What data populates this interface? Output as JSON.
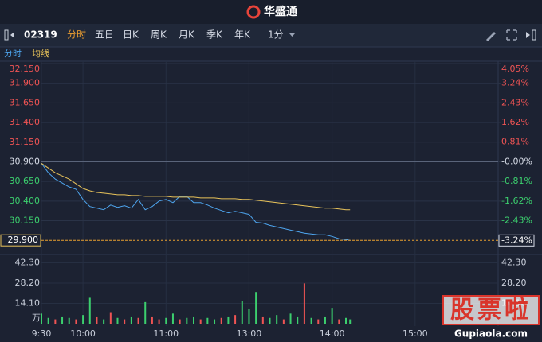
{
  "header": {
    "logo": "华盛通"
  },
  "toolbar": {
    "code": "02319",
    "tabs": [
      "分时",
      "五日",
      "日K",
      "周K",
      "月K",
      "季K",
      "年K"
    ],
    "interval": "1分"
  },
  "watermark": {
    "title": "股票啦",
    "url": "Gupiaola.com"
  },
  "chart_data": [
    {
      "type": "line",
      "x": [
        0,
        5,
        10,
        15,
        20,
        25,
        30,
        35,
        40,
        45,
        50,
        55,
        60,
        65,
        70,
        75,
        80,
        85,
        90,
        95,
        100,
        105,
        110,
        115,
        120,
        125,
        130,
        135,
        140,
        145,
        150,
        155,
        160,
        165,
        170,
        175,
        180,
        185,
        190,
        195,
        200,
        205,
        210,
        215,
        220,
        223
      ],
      "xlim": [
        0,
        330
      ],
      "series": [
        {
          "name": "分时",
          "color": "#4ea5ee",
          "values": [
            30.88,
            30.76,
            30.68,
            30.63,
            30.58,
            30.55,
            30.42,
            30.33,
            30.31,
            30.29,
            30.35,
            30.32,
            30.34,
            30.31,
            30.42,
            30.29,
            30.33,
            30.4,
            30.42,
            30.38,
            30.46,
            30.46,
            30.38,
            30.38,
            30.35,
            30.31,
            30.28,
            30.25,
            30.27,
            30.25,
            30.23,
            30.13,
            30.12,
            30.09,
            30.07,
            30.05,
            30.03,
            30.01,
            29.99,
            29.98,
            29.97,
            29.97,
            29.95,
            29.92,
            29.91,
            29.9
          ]
        },
        {
          "name": "均线",
          "color": "#e8c35a",
          "values": [
            30.88,
            30.82,
            30.76,
            30.72,
            30.68,
            30.62,
            30.56,
            30.53,
            30.51,
            30.5,
            30.49,
            30.48,
            30.48,
            30.47,
            30.47,
            30.46,
            30.46,
            30.46,
            30.46,
            30.45,
            30.45,
            30.45,
            30.45,
            30.44,
            30.44,
            30.44,
            30.43,
            30.43,
            30.43,
            30.42,
            30.42,
            30.41,
            30.4,
            30.39,
            30.38,
            30.37,
            30.36,
            30.35,
            30.34,
            30.33,
            30.32,
            30.31,
            30.31,
            30.3,
            30.29,
            30.29
          ]
        }
      ],
      "ylim": [
        29.74,
        32.15
      ],
      "yticks": [
        {
          "value": 32.15,
          "label": "32.150"
        },
        {
          "value": 31.9,
          "label": "31.900"
        },
        {
          "value": 31.65,
          "label": "31.650"
        },
        {
          "value": 31.4,
          "label": "31.400"
        },
        {
          "value": 31.15,
          "label": "31.150"
        },
        {
          "value": 30.9,
          "label": "30.900"
        },
        {
          "value": 30.65,
          "label": "30.650"
        },
        {
          "value": 30.4,
          "label": "30.400"
        },
        {
          "value": 30.15,
          "label": "30.150"
        }
      ],
      "y2lim": [
        -3.754,
        4.045
      ],
      "y2ticks": [
        {
          "value": 4.05,
          "label": "4.05%"
        },
        {
          "value": 3.24,
          "label": "3.24%"
        },
        {
          "value": 2.43,
          "label": "2.43%"
        },
        {
          "value": 1.62,
          "label": "1.62%"
        },
        {
          "value": 0.81,
          "label": "0.81%"
        },
        {
          "value": 0,
          "label": "-0.00%"
        },
        {
          "value": -0.81,
          "label": "-0.81%"
        },
        {
          "value": -1.62,
          "label": "-1.62%"
        },
        {
          "value": -2.43,
          "label": "-2.43%"
        }
      ],
      "last_price": {
        "value": 29.9,
        "label": "29.900"
      },
      "last_change": {
        "value": -3.24,
        "label": "-3.24%"
      },
      "up_color": "#f05454",
      "down_color": "#3ccf6e",
      "grid": true
    },
    {
      "type": "bar",
      "x": [
        0,
        5,
        10,
        15,
        20,
        25,
        30,
        35,
        40,
        45,
        50,
        55,
        60,
        65,
        70,
        75,
        80,
        85,
        90,
        95,
        100,
        105,
        110,
        115,
        120,
        125,
        130,
        135,
        140,
        145,
        150,
        155,
        160,
        165,
        170,
        175,
        180,
        185,
        190,
        195,
        200,
        205,
        210,
        215,
        220,
        223
      ],
      "xlim": [
        0,
        330
      ],
      "values": [
        7,
        4,
        3,
        5,
        4,
        3,
        6,
        18,
        5,
        3,
        8,
        4,
        3,
        5,
        4,
        15,
        5,
        3,
        4,
        7,
        3,
        4,
        5,
        3,
        4,
        3,
        4,
        5,
        6,
        16,
        10,
        22,
        5,
        4,
        6,
        3,
        7,
        5,
        28,
        4,
        3,
        5,
        11,
        3,
        4,
        3
      ],
      "bar_colors": [
        "#3ccf6e",
        "#3ccf6e",
        "#f05454",
        "#3ccf6e",
        "#3ccf6e",
        "#f05454",
        "#3ccf6e",
        "#3ccf6e",
        "#f05454",
        "#3ccf6e",
        "#f05454",
        "#3ccf6e",
        "#f05454",
        "#3ccf6e",
        "#f05454",
        "#3ccf6e",
        "#f05454",
        "#f05454",
        "#3ccf6e",
        "#3ccf6e",
        "#f05454",
        "#3ccf6e",
        "#3ccf6e",
        "#f05454",
        "#3ccf6e",
        "#3ccf6e",
        "#f05454",
        "#3ccf6e",
        "#f05454",
        "#3ccf6e",
        "#3ccf6e",
        "#3ccf6e",
        "#f05454",
        "#3ccf6e",
        "#3ccf6e",
        "#f05454",
        "#3ccf6e",
        "#3ccf6e",
        "#f05454",
        "#3ccf6e",
        "#f05454",
        "#3ccf6e",
        "#3ccf6e",
        "#f05454",
        "#3ccf6e",
        "#3ccf6e"
      ],
      "ylim": [
        0,
        47
      ],
      "yticks": [
        {
          "value": 14.1,
          "label": "14.10"
        },
        {
          "value": 28.2,
          "label": "28.20"
        },
        {
          "value": 42.3,
          "label": "42.30"
        }
      ],
      "unit": "万",
      "xticks": [
        {
          "value": 0,
          "label": "9:30"
        },
        {
          "value": 30,
          "label": "10:00"
        },
        {
          "value": 90,
          "label": "11:00"
        },
        {
          "value": 150,
          "label": "13:00"
        },
        {
          "value": 210,
          "label": "14:00"
        },
        {
          "value": 270,
          "label": "15:00"
        }
      ]
    }
  ]
}
